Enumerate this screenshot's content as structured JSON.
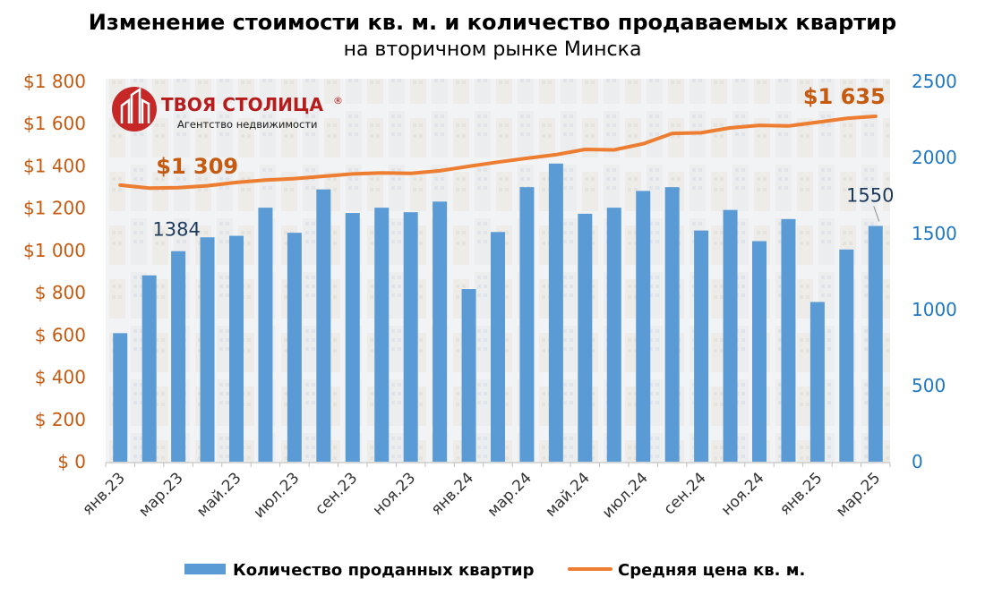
{
  "title": "Изменение стоимости кв. м. и количество продаваемых квартир",
  "subtitle": "на вторичном рынке Минска",
  "logo": {
    "name": "ТВОЯ СТОЛИЦА",
    "mark": "®",
    "tagline": "Агентство недвижимости"
  },
  "colors": {
    "bars": "#5b9bd5",
    "line": "#ed7d31",
    "left_axis": "#c55a11",
    "right_axis": "#1f77c4",
    "count_label": "#1f3b5c"
  },
  "legend": {
    "bars_label": "Количество проданных квартир",
    "line_label": "Средняя цена кв. м."
  },
  "annotations": {
    "first_price": "$1 309",
    "last_price": "$1 635",
    "second_count": "1384",
    "last_count": "1550"
  },
  "chart_data": {
    "type": "bar",
    "months": [
      "янв.23",
      "фев.23",
      "мар.23",
      "апр.23",
      "май.23",
      "июн.23",
      "июл.23",
      "авг.23",
      "сен.23",
      "окт.23",
      "ноя.23",
      "дек.23",
      "янв.24",
      "фев.24",
      "мар.24",
      "апр.24",
      "май.24",
      "июн.24",
      "июл.24",
      "авг.24",
      "сен.24",
      "окт.24",
      "ноя.24",
      "дек.24",
      "янв.25",
      "фев.25",
      "мар.25"
    ],
    "x_tick_labels": [
      "янв.23",
      "мар.23",
      "май.23",
      "июл.23",
      "сен.23",
      "ноя.23",
      "янв.24",
      "мар.24",
      "май.24",
      "июл.24",
      "сен.24",
      "ноя.24",
      "янв.25",
      "мар.25"
    ],
    "series": [
      {
        "name": "Количество проданных квартир",
        "type": "bar",
        "axis": "right",
        "values": [
          845,
          1225,
          1384,
          1475,
          1485,
          1670,
          1505,
          1790,
          1635,
          1670,
          1640,
          1710,
          1135,
          1510,
          1805,
          1960,
          1630,
          1670,
          1780,
          1805,
          1520,
          1655,
          1450,
          1595,
          1050,
          1395,
          1550
        ]
      },
      {
        "name": "Средняя цена кв. м.",
        "type": "line",
        "axis": "left",
        "values": [
          1309,
          1295,
          1297,
          1306,
          1322,
          1333,
          1340,
          1351,
          1362,
          1367,
          1365,
          1377,
          1398,
          1418,
          1436,
          1453,
          1478,
          1476,
          1505,
          1554,
          1557,
          1580,
          1592,
          1589,
          1607,
          1625,
          1635
        ]
      }
    ],
    "y_left": {
      "min": 0,
      "max": 1800,
      "step": 200,
      "tick_labels": [
        "$ 0",
        "$ 200",
        "$ 400",
        "$ 600",
        "$ 800",
        "$1 000",
        "$1 200",
        "$1 400",
        "$1 600",
        "$1 800"
      ]
    },
    "y_right": {
      "min": 0,
      "max": 2500,
      "step": 500,
      "tick_labels": [
        "0",
        "500",
        "1000",
        "1500",
        "2000",
        "2500"
      ]
    },
    "grid": false,
    "legend_position": "bottom"
  }
}
